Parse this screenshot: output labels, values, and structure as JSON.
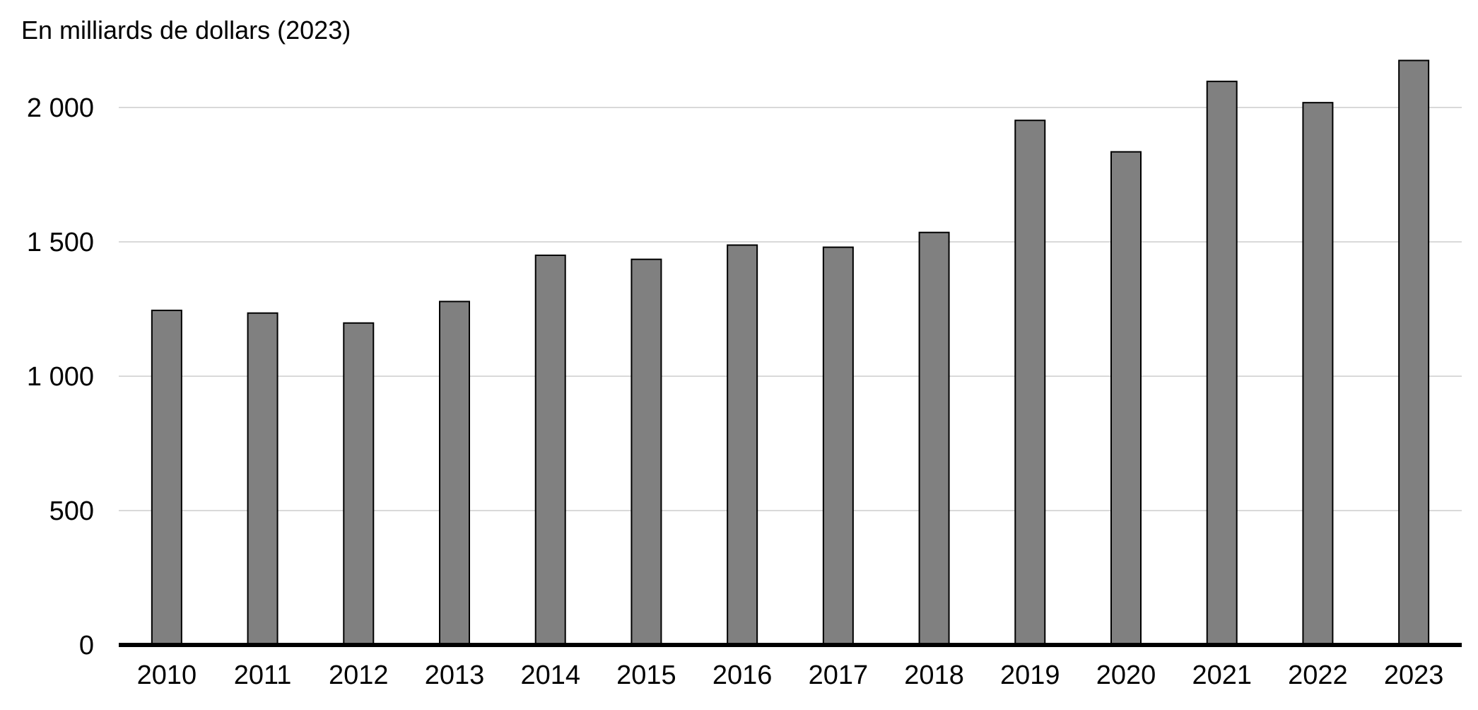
{
  "chart_data": {
    "type": "bar",
    "title": "",
    "ylabel": "En milliards de dollars (2023)",
    "xlabel": "",
    "categories": [
      "2010",
      "2011",
      "2012",
      "2013",
      "2014",
      "2015",
      "2016",
      "2017",
      "2018",
      "2019",
      "2020",
      "2021",
      "2022",
      "2023"
    ],
    "values": [
      1245,
      1235,
      1198,
      1278,
      1450,
      1435,
      1488,
      1480,
      1535,
      1952,
      1835,
      2097,
      2018,
      2175
    ],
    "ylim": [
      0,
      2250
    ],
    "yticks": [
      0,
      500,
      1000,
      1500,
      2000
    ],
    "ytick_labels": [
      "0",
      "500",
      "1 000",
      "1 500",
      "2 000"
    ],
    "grid": true,
    "legend": "none",
    "bar_color": "#808080",
    "bar_edge_color": "#000000",
    "grid_color": "#d9d9d9"
  }
}
